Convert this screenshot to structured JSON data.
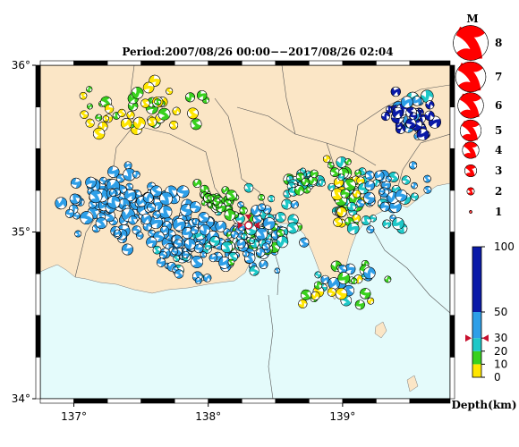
{
  "title": "Period:2007/08/26 00:00−−2017/08/26 02:04",
  "map": {
    "lon_range": [
      136.75,
      139.8
    ],
    "lat_range": [
      34.0,
      36.0
    ],
    "lon_ticks": [
      {
        "value": 137,
        "label": "137°"
      },
      {
        "value": 138,
        "label": "138°"
      },
      {
        "value": 139,
        "label": "139°"
      }
    ],
    "lat_ticks": [
      {
        "value": 34,
        "label": "34°"
      },
      {
        "value": 35,
        "label": "35°"
      },
      {
        "value": 36,
        "label": "36°"
      }
    ],
    "colors": {
      "land": "#fbe6c6",
      "sea": "#e4fbfb",
      "boundary": "#555555",
      "frame": "#000000"
    },
    "selected_event": {
      "lon": 138.3,
      "lat": 35.04,
      "marker_color": "#c8102e"
    }
  },
  "magnitude_legend": {
    "heading": "M",
    "entries": [
      {
        "magnitude": 8,
        "label": "8"
      },
      {
        "magnitude": 7,
        "label": "7"
      },
      {
        "magnitude": 6,
        "label": "6"
      },
      {
        "magnitude": 5,
        "label": "5"
      },
      {
        "magnitude": 4,
        "label": "4"
      },
      {
        "magnitude": 3,
        "label": "3"
      },
      {
        "magnitude": 2,
        "label": "2"
      },
      {
        "magnitude": 1,
        "label": "1"
      }
    ],
    "color": "#ff0000"
  },
  "depth_colorbar": {
    "label": "Depth(km)",
    "range": [
      0,
      100
    ],
    "ticks": [
      {
        "value": 100,
        "label": "100"
      },
      {
        "value": 50,
        "label": "50"
      },
      {
        "value": 30,
        "label": "30"
      },
      {
        "value": 20,
        "label": "20"
      },
      {
        "value": 10,
        "label": "10"
      },
      {
        "value": 0,
        "label": "0"
      }
    ],
    "bands": [
      {
        "from": 0,
        "to": 10,
        "color": "#ffe600"
      },
      {
        "from": 10,
        "to": 20,
        "color": "#39d11e"
      },
      {
        "from": 20,
        "to": 30,
        "color": "#1ec8c8"
      },
      {
        "from": 30,
        "to": 50,
        "color": "#2e9fe8"
      },
      {
        "from": 50,
        "to": 100,
        "color": "#0a1aa8"
      }
    ],
    "selected_depth": 30,
    "selected_marker_color": "#c8102e"
  },
  "chart_data": {
    "type": "scatter",
    "title": "Period:2007/08/26 00:00−−2017/08/26 02:04",
    "xlabel": "",
    "ylabel": "",
    "xlim": [
      136.75,
      139.8
    ],
    "ylim": [
      34.0,
      36.0
    ],
    "marker_encoding": {
      "size": "magnitude",
      "color": "depth_km"
    },
    "clusters": [
      {
        "lon": 137.4,
        "lat": 35.15,
        "spread_lon": 0.55,
        "spread_lat": 0.3,
        "count": 130,
        "depth_range": [
          30,
          50
        ],
        "mag_range": [
          1.8,
          3.3
        ]
      },
      {
        "lon": 137.9,
        "lat": 34.95,
        "spread_lon": 0.4,
        "spread_lat": 0.3,
        "count": 90,
        "depth_range": [
          28,
          48
        ],
        "mag_range": [
          1.6,
          3.1
        ]
      },
      {
        "lon": 138.35,
        "lat": 35.0,
        "spread_lon": 0.4,
        "spread_lat": 0.3,
        "count": 110,
        "depth_range": [
          10,
          45
        ],
        "mag_range": [
          1.5,
          3.0
        ]
      },
      {
        "lon": 138.05,
        "lat": 35.2,
        "spread_lon": 0.25,
        "spread_lat": 0.12,
        "count": 30,
        "depth_range": [
          12,
          20
        ],
        "mag_range": [
          1.6,
          2.8
        ]
      },
      {
        "lon": 138.7,
        "lat": 35.3,
        "spread_lon": 0.2,
        "spread_lat": 0.12,
        "count": 35,
        "depth_range": [
          15,
          30
        ],
        "mag_range": [
          1.5,
          2.8
        ]
      },
      {
        "lon": 139.05,
        "lat": 35.25,
        "spread_lon": 0.2,
        "spread_lat": 0.3,
        "count": 60,
        "depth_range": [
          0,
          30
        ],
        "mag_range": [
          1.6,
          3.0
        ]
      },
      {
        "lon": 139.35,
        "lat": 35.2,
        "spread_lon": 0.35,
        "spread_lat": 0.25,
        "count": 40,
        "depth_range": [
          20,
          50
        ],
        "mag_range": [
          1.6,
          3.0
        ]
      },
      {
        "lon": 139.5,
        "lat": 35.7,
        "spread_lon": 0.25,
        "spread_lat": 0.2,
        "count": 45,
        "depth_range": [
          25,
          100
        ],
        "mag_range": [
          1.8,
          3.2
        ]
      },
      {
        "lon": 137.55,
        "lat": 35.75,
        "spread_lon": 0.75,
        "spread_lat": 0.2,
        "count": 45,
        "depth_range": [
          0,
          20
        ],
        "mag_range": [
          1.6,
          3.0
        ]
      },
      {
        "lon": 139.0,
        "lat": 34.7,
        "spread_lon": 0.4,
        "spread_lat": 0.25,
        "count": 35,
        "depth_range": [
          0,
          40
        ],
        "mag_range": [
          1.6,
          3.0
        ]
      }
    ]
  }
}
